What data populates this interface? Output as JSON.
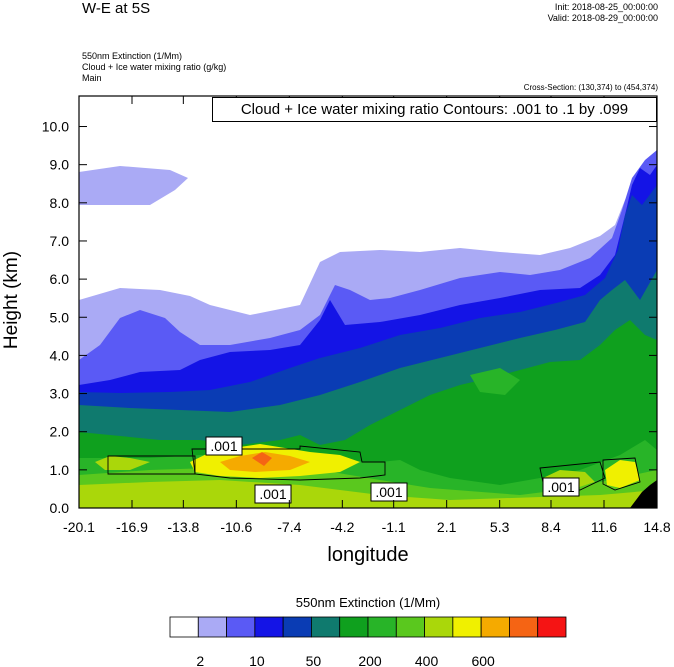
{
  "header": {
    "title": "W-E at 5S",
    "init": "Init: 2018-08-25_00:00:00",
    "valid": "Valid: 2018-08-29_00:00:00",
    "field1": "550nm Extinction   (1/Mm)",
    "field2": "Cloud + Ice water mixing ratio   (g/kg)",
    "field3": "Main",
    "cross_section": "Cross-Section: (130,374) to (454,374)",
    "contour_info": "Cloud + Ice water mixing ratio Contours: .001 to .1 by .099"
  },
  "chart_data": {
    "type": "heatmap",
    "title": "W-E at 5S",
    "xlabel": "longitude",
    "ylabel": "Height (km)",
    "xlim": [
      -20.1,
      14.8
    ],
    "ylim": [
      0.0,
      10.8
    ],
    "x_ticks": [
      "-20.1",
      "-16.9",
      "-13.8",
      "-10.6",
      "-7.4",
      "-4.2",
      "-1.1",
      "2.1",
      "5.3",
      "8.4",
      "11.6",
      "14.8"
    ],
    "y_ticks": [
      "0.0",
      "1.0",
      "2.0",
      "3.0",
      "4.0",
      "5.0",
      "6.0",
      "7.0",
      "8.0",
      "9.0",
      "10.0"
    ],
    "colorbar": {
      "title": "550nm Extinction  (1/Mm)",
      "labels": [
        "2",
        "10",
        "50",
        "200",
        "400",
        "600"
      ],
      "colors": [
        "#ffffff",
        "#aaaaf5",
        "#5a5af5",
        "#1414e6",
        "#0a3cb4",
        "#0f7a6e",
        "#0fa01e",
        "#28b428",
        "#5ac81e",
        "#aad70a",
        "#f0f000",
        "#f5aa00",
        "#f56414",
        "#f51414"
      ]
    },
    "contour_labels": [
      ".001",
      ".001",
      ".001",
      ".001"
    ]
  }
}
